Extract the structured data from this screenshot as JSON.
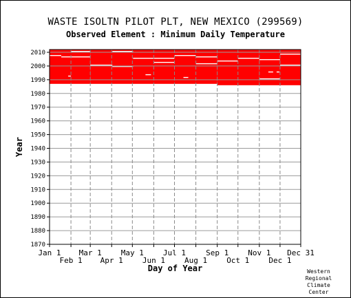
{
  "chart_data": {
    "type": "heatmap",
    "title": "WASTE ISOLTN PILOT PLT, NEW MEXICO   (299569)",
    "subtitle": "Observed Element : Minimum Daily Temperature",
    "xlabel": "Day of Year",
    "ylabel": "Year",
    "xlim": [
      1,
      365
    ],
    "ylim": [
      1870,
      2012
    ],
    "grid": true,
    "color": "#ff0000",
    "y_ticks": [
      1870,
      1880,
      1890,
      1900,
      1910,
      1920,
      1930,
      1940,
      1950,
      1960,
      1970,
      1980,
      1990,
      2000,
      2010
    ],
    "x_ticks_top": [
      {
        "label": "Jan 1",
        "day": 1
      },
      {
        "label": "Mar 1",
        "day": 60
      },
      {
        "label": "May 1",
        "day": 121
      },
      {
        "label": "Jul 1",
        "day": 182
      },
      {
        "label": "Sep 1",
        "day": 244
      },
      {
        "label": "Nov 1",
        "day": 305
      },
      {
        "label": "Dec 31",
        "day": 365
      }
    ],
    "x_ticks_bottom": [
      {
        "label": "Feb 1",
        "day": 32
      },
      {
        "label": "Apr 1",
        "day": 91
      },
      {
        "label": "Jun 1",
        "day": 152
      },
      {
        "label": "Aug 1",
        "day": 213
      },
      {
        "label": "Oct 1",
        "day": 274
      },
      {
        "label": "Dec 1",
        "day": 335
      }
    ],
    "data_blocks": [
      {
        "day_start": 1,
        "day_end": 60,
        "year_start": 1987,
        "year_end": 2011
      },
      {
        "day_start": 60,
        "day_end": 182,
        "year_start": 1987,
        "year_end": 2011
      },
      {
        "day_start": 182,
        "day_end": 244,
        "year_start": 1987,
        "year_end": 2011
      },
      {
        "day_start": 244,
        "day_end": 305,
        "year_start": 1986,
        "year_end": 2011
      },
      {
        "day_start": 305,
        "day_end": 365,
        "year_start": 1986,
        "year_end": 2011
      }
    ],
    "missing_segments": [
      {
        "day_start": 1,
        "day_end": 18,
        "year": 2007
      },
      {
        "day_start": 18,
        "day_end": 60,
        "year": 2006
      },
      {
        "day_start": 32,
        "day_end": 60,
        "year": 2010
      },
      {
        "day_start": 60,
        "day_end": 92,
        "year": 2000
      },
      {
        "day_start": 92,
        "day_end": 122,
        "year": 1999
      },
      {
        "day_start": 92,
        "day_end": 122,
        "year": 2010
      },
      {
        "day_start": 122,
        "day_end": 182,
        "year": 2005
      },
      {
        "day_start": 152,
        "day_end": 182,
        "year": 2002
      },
      {
        "day_start": 182,
        "day_end": 213,
        "year": 2007
      },
      {
        "day_start": 213,
        "day_end": 244,
        "year": 2001
      },
      {
        "day_start": 213,
        "day_end": 244,
        "year": 2006
      },
      {
        "day_start": 244,
        "day_end": 274,
        "year": 2003
      },
      {
        "day_start": 274,
        "day_end": 305,
        "year": 2005
      },
      {
        "day_start": 305,
        "day_end": 335,
        "year": 1990
      },
      {
        "day_start": 305,
        "day_end": 335,
        "year": 2004
      },
      {
        "day_start": 335,
        "day_end": 365,
        "year": 2000
      },
      {
        "day_start": 335,
        "day_end": 365,
        "year": 2008
      },
      {
        "day_start": 140,
        "day_end": 148,
        "year": 1993
      },
      {
        "day_start": 195,
        "day_end": 202,
        "year": 1991
      },
      {
        "day_start": 28,
        "day_end": 32,
        "year": 1992
      },
      {
        "day_start": 318,
        "day_end": 325,
        "year": 1995
      },
      {
        "day_start": 330,
        "day_end": 334,
        "year": 1995
      }
    ]
  },
  "credit": {
    "line1": "Western",
    "line2": "Regional",
    "line3": "Climate",
    "line4": "Center"
  }
}
